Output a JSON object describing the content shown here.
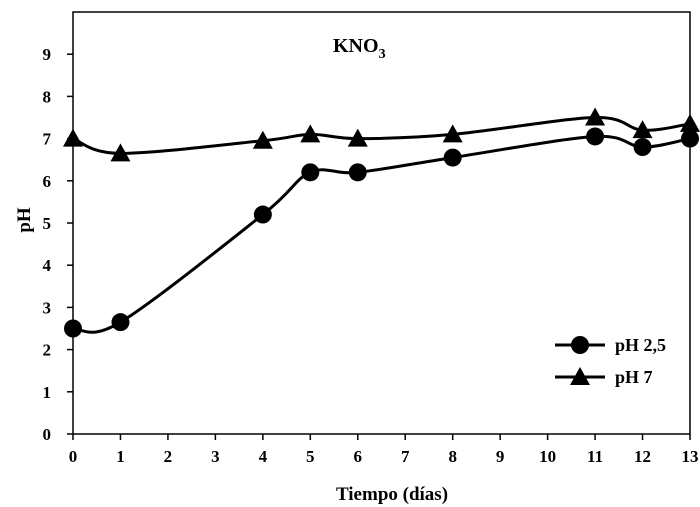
{
  "chart_data": {
    "type": "line",
    "title": "KNO",
    "title_subscript": "3",
    "xlabel": "Tiempo (días)",
    "ylabel": "pH",
    "xlim": [
      0,
      13
    ],
    "ylim": [
      0,
      10
    ],
    "x_ticks": [
      0,
      1,
      2,
      3,
      4,
      5,
      6,
      7,
      8,
      9,
      10,
      11,
      12,
      13
    ],
    "y_ticks": [
      0,
      1,
      2,
      3,
      4,
      5,
      6,
      7,
      8,
      9
    ],
    "grid": false,
    "legend_position": "bottom-right",
    "series": [
      {
        "name": "pH 2,5",
        "marker": "circle",
        "color": "#000000",
        "x": [
          0,
          1,
          4,
          5,
          6,
          8,
          11,
          12,
          13
        ],
        "y": [
          2.5,
          2.65,
          5.2,
          6.2,
          6.2,
          6.55,
          7.05,
          6.8,
          7.0
        ]
      },
      {
        "name": "pH 7",
        "marker": "triangle",
        "color": "#000000",
        "x": [
          0,
          1,
          4,
          5,
          6,
          8,
          11,
          12,
          13
        ],
        "y": [
          7.0,
          6.65,
          6.95,
          7.1,
          7.0,
          7.1,
          7.5,
          7.2,
          7.35
        ]
      }
    ]
  }
}
